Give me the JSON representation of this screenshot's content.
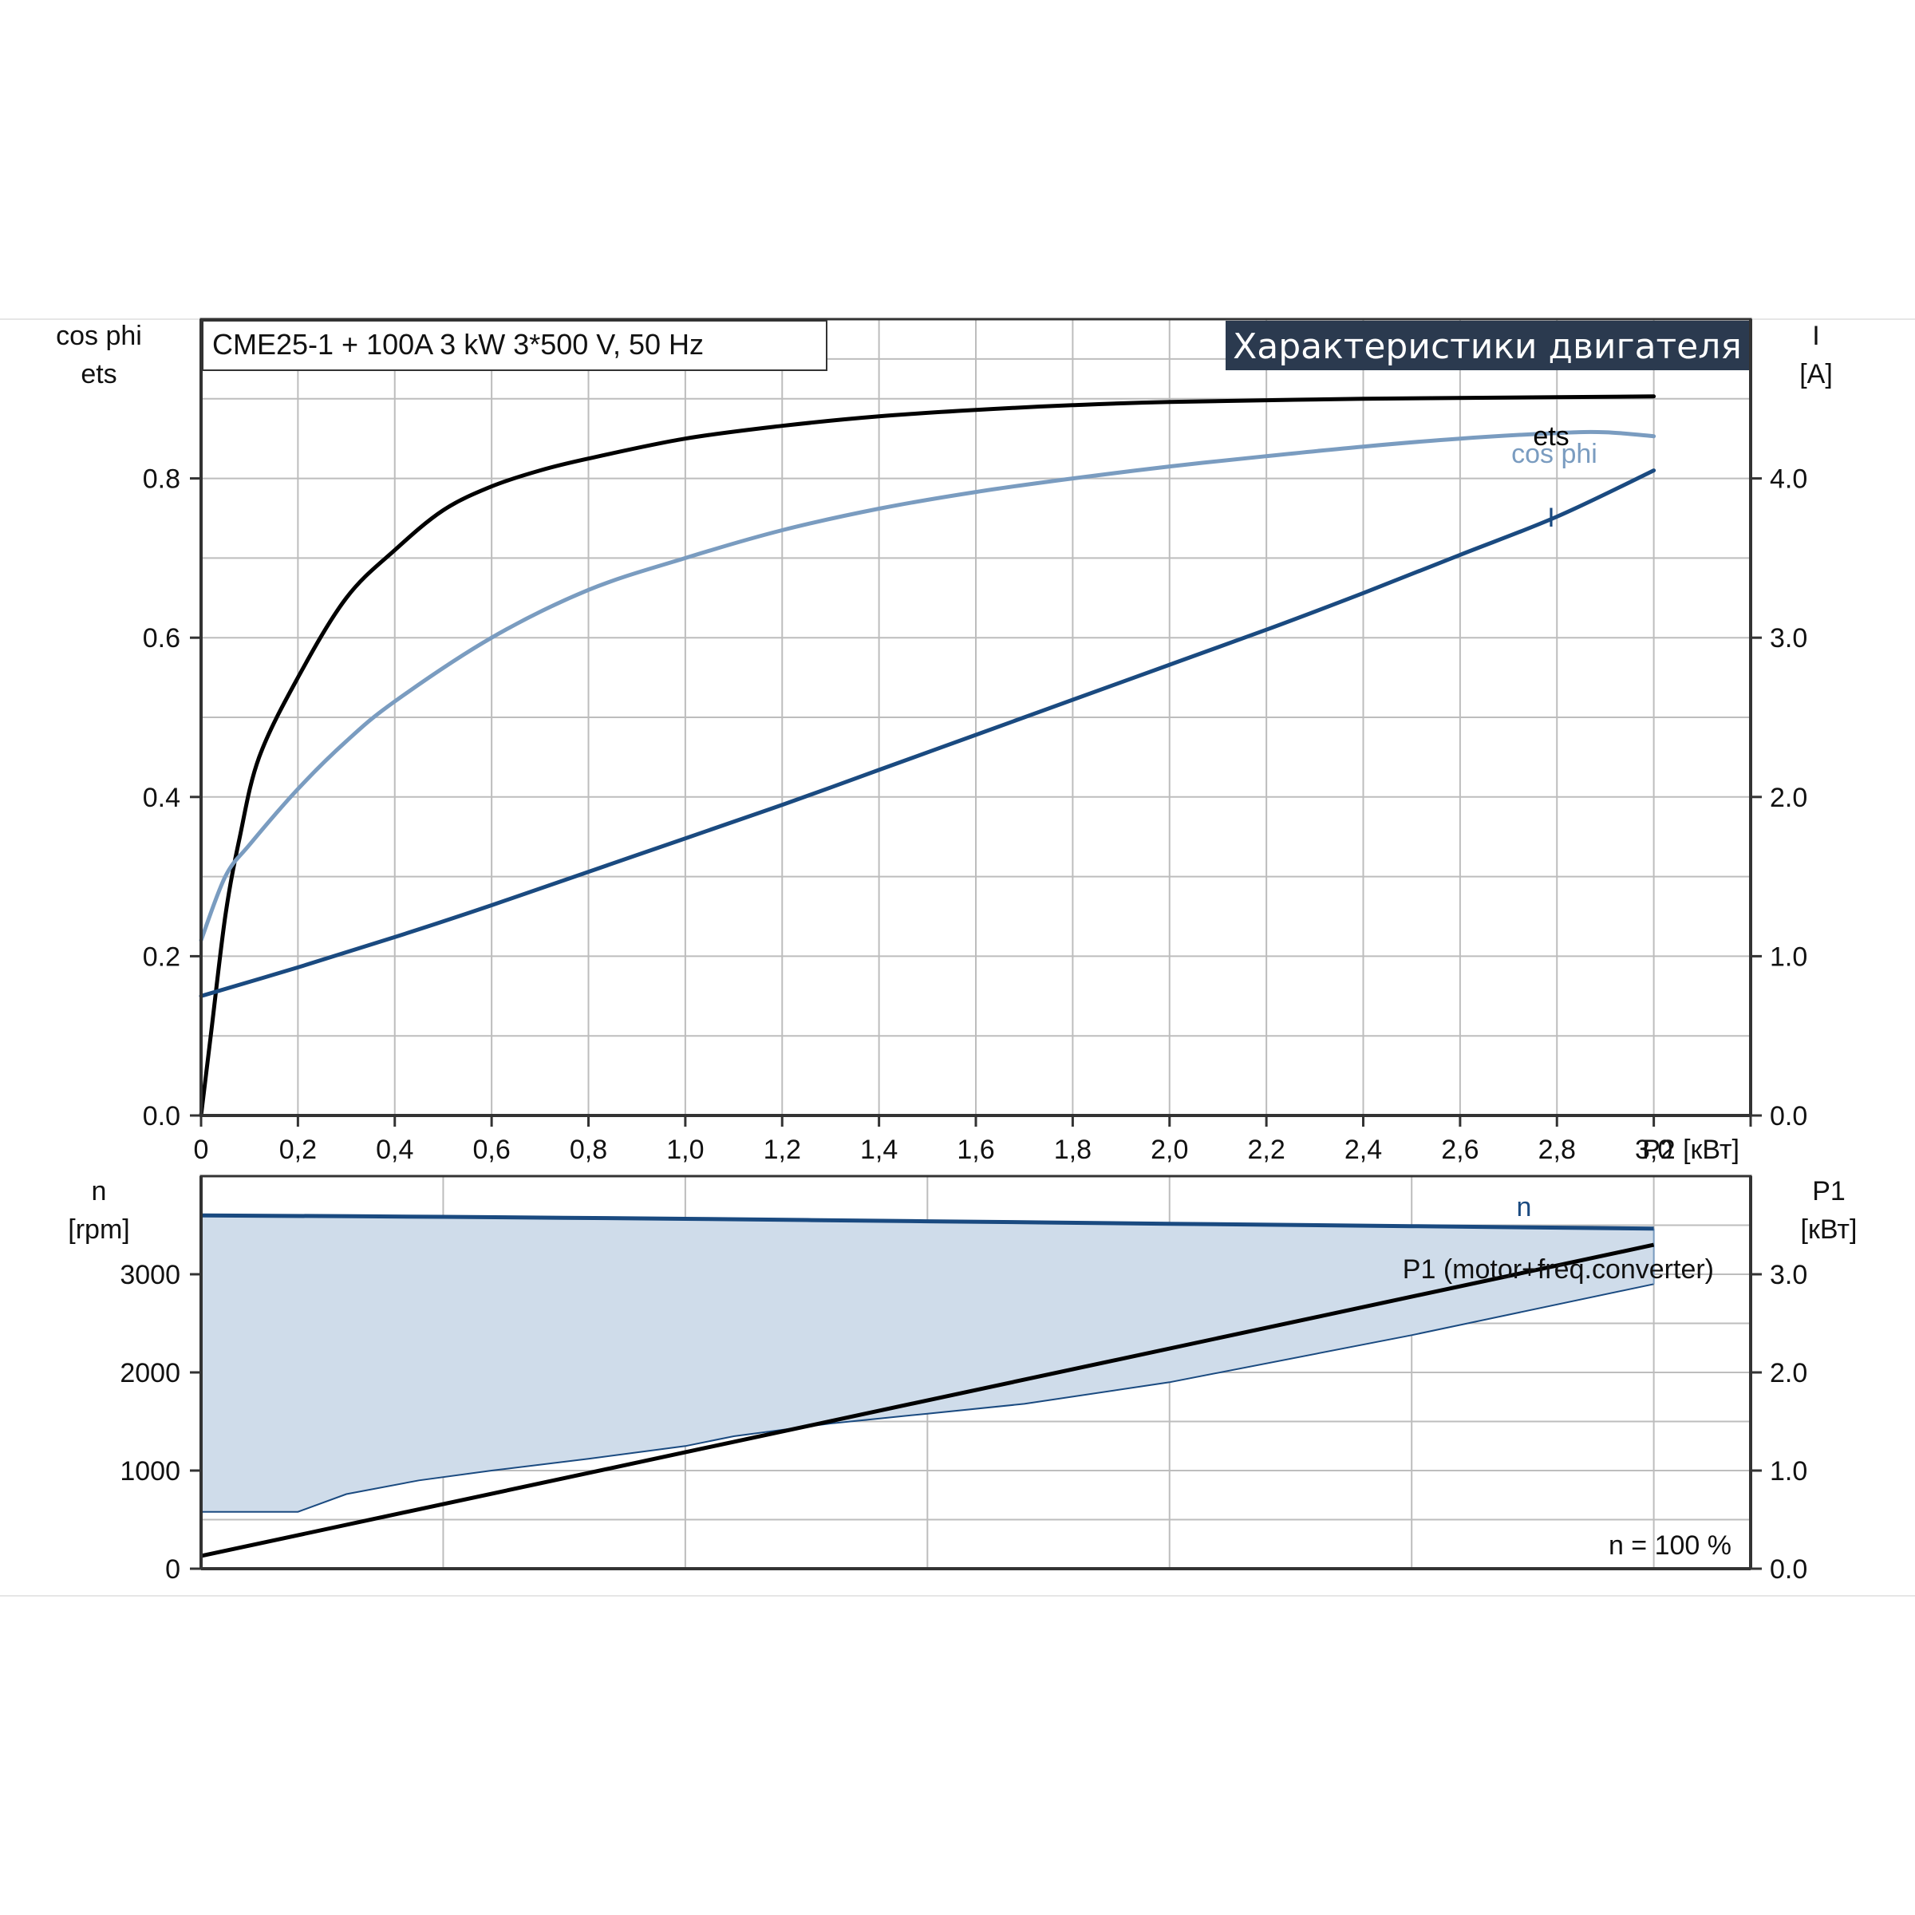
{
  "header": {
    "model": "CME25-1 + 100A   3 kW   3*500 V, 50 Hz",
    "section": "Характеристики двигателя"
  },
  "chart_data": [
    {
      "type": "line",
      "x_axis": {
        "label": "P2 [кВт]",
        "range": [
          0,
          3.2
        ],
        "ticks": [
          "0",
          "0,2",
          "0,4",
          "0,6",
          "0,8",
          "1,0",
          "1,2",
          "1,4",
          "1,6",
          "1,8",
          "2,0",
          "2,2",
          "2,4",
          "2,6",
          "2,8",
          "3,0"
        ]
      },
      "y_left": {
        "label_line1": "cos phi",
        "label_line2": "ets",
        "range": [
          0,
          1.0
        ],
        "ticks": [
          "0.0",
          "0.2",
          "0.4",
          "0.6",
          "0.8"
        ]
      },
      "y_right": {
        "label_line1": "I",
        "label_line2": "[A]",
        "range": [
          0,
          5.0
        ],
        "ticks": [
          "0.0",
          "1.0",
          "2.0",
          "3.0",
          "4.0"
        ]
      },
      "grid": true,
      "series": [
        {
          "name": "ets",
          "axis": "left",
          "color": "#000000",
          "x": [
            0,
            0.02,
            0.05,
            0.08,
            0.12,
            0.2,
            0.3,
            0.4,
            0.5,
            0.6,
            0.7,
            0.8,
            1.0,
            1.2,
            1.4,
            1.6,
            1.8,
            2.0,
            2.4,
            2.8,
            3.0
          ],
          "y": [
            0,
            0.1,
            0.25,
            0.35,
            0.45,
            0.55,
            0.65,
            0.71,
            0.76,
            0.79,
            0.81,
            0.825,
            0.85,
            0.866,
            0.878,
            0.886,
            0.892,
            0.896,
            0.9,
            0.902,
            0.903
          ]
        },
        {
          "name": "cos phi",
          "axis": "left",
          "color": "#7a9cc0",
          "x": [
            0,
            0.05,
            0.1,
            0.2,
            0.3,
            0.4,
            0.6,
            0.8,
            1.0,
            1.2,
            1.4,
            1.6,
            1.8,
            2.0,
            2.2,
            2.4,
            2.6,
            2.8,
            2.9,
            3.0
          ],
          "y": [
            0.22,
            0.3,
            0.34,
            0.41,
            0.47,
            0.52,
            0.6,
            0.66,
            0.7,
            0.735,
            0.762,
            0.783,
            0.8,
            0.815,
            0.828,
            0.84,
            0.85,
            0.857,
            0.858,
            0.853
          ]
        },
        {
          "name": "I",
          "axis": "right",
          "color": "#1a4a80",
          "x": [
            0,
            0.2,
            0.4,
            0.6,
            0.8,
            1.0,
            1.2,
            1.4,
            1.6,
            1.8,
            2.0,
            2.2,
            2.4,
            2.6,
            2.8,
            3.0
          ],
          "y": [
            0.75,
            0.93,
            1.12,
            1.32,
            1.53,
            1.74,
            1.95,
            2.17,
            2.39,
            2.61,
            2.83,
            3.05,
            3.28,
            3.52,
            3.76,
            4.05
          ]
        }
      ]
    },
    {
      "type": "area",
      "x_axis": {
        "range": [
          0,
          3.2
        ]
      },
      "y_left": {
        "label_line1": "n",
        "label_line2": "[rpm]",
        "range": [
          0,
          4000
        ],
        "ticks": [
          "0",
          "1000",
          "2000",
          "3000"
        ]
      },
      "y_right": {
        "label_line1": "P1",
        "label_line2": "[кВт]",
        "range": [
          0,
          4.0
        ],
        "ticks": [
          "0.0",
          "1.0",
          "2.0",
          "3.0"
        ]
      },
      "grid": true,
      "annotation": "n = 100 %",
      "series": [
        {
          "name": "n",
          "axis": "left",
          "color": "#1a4a80",
          "x": [
            0,
            0.5,
            1.0,
            1.5,
            2.0,
            2.5,
            3.0
          ],
          "y": [
            3600,
            3585,
            3565,
            3540,
            3515,
            3490,
            3465
          ]
        },
        {
          "name": "range lower edge",
          "axis": "left",
          "color": "#1a4a80",
          "x": [
            0,
            0.2,
            0.3,
            0.45,
            0.6,
            0.8,
            1.0,
            1.1,
            1.3,
            1.5,
            1.7,
            2.0,
            2.5,
            3.0
          ],
          "y": [
            580,
            580,
            760,
            900,
            1000,
            1120,
            1250,
            1350,
            1480,
            1580,
            1680,
            1900,
            2380,
            2900
          ]
        },
        {
          "name": "P1 (motor+freq.converter)",
          "axis": "right",
          "color": "#000000",
          "x": [
            0,
            3.0
          ],
          "y": [
            0.13,
            3.3
          ]
        }
      ]
    }
  ]
}
